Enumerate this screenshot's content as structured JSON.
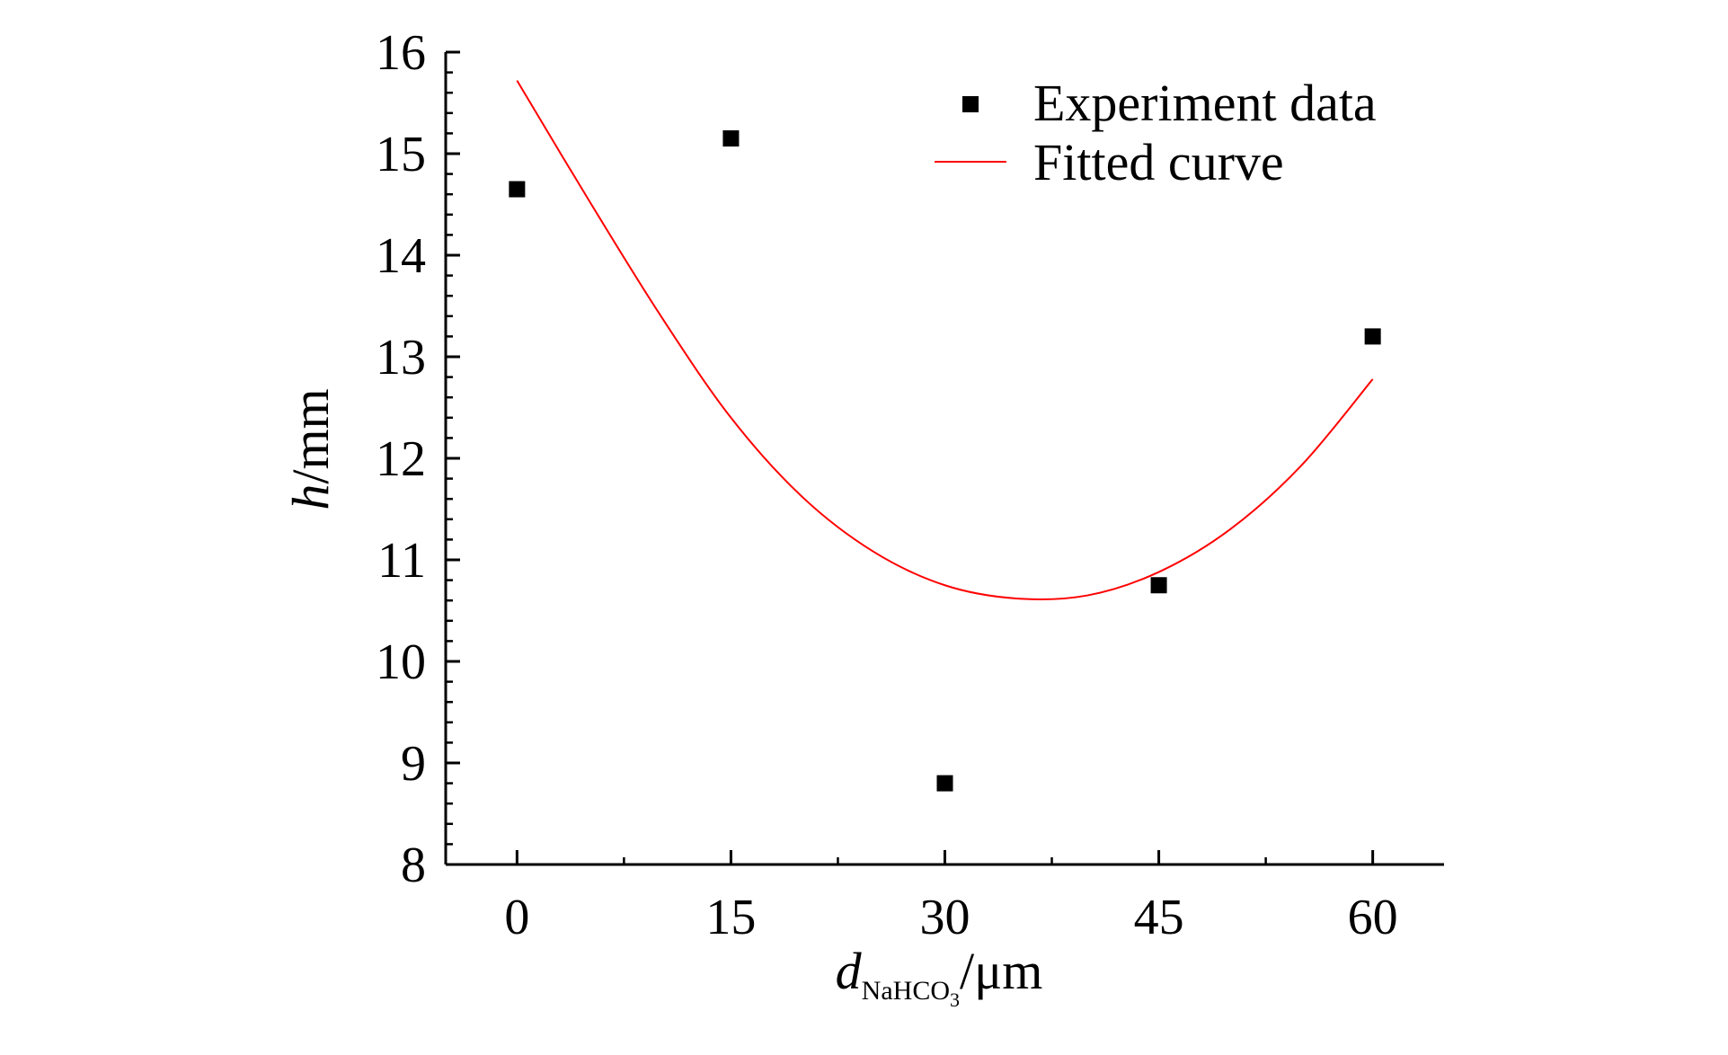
{
  "colors": {
    "background": "#ffffff",
    "axis": "#000000",
    "marker": "#000000",
    "fit_line": "#ff0000"
  },
  "chart_data": {
    "type": "scatter",
    "xlabel": {
      "main": "d",
      "subscript": "NaHCO",
      "subsubscript": "3",
      "unit": "/μm"
    },
    "ylabel": {
      "main": "h",
      "unit": "/mm"
    },
    "xlim": [
      -5,
      65
    ],
    "ylim": [
      8,
      16
    ],
    "x_ticks": [
      0,
      15,
      30,
      45,
      60
    ],
    "x_tick_labels": [
      "0",
      "15",
      "30",
      "45",
      "60"
    ],
    "y_ticks": [
      8,
      9,
      10,
      11,
      12,
      13,
      14,
      15,
      16
    ],
    "y_tick_labels": [
      "8",
      "9",
      "10",
      "11",
      "12",
      "13",
      "14",
      "15",
      "16"
    ],
    "grid": false,
    "legend_position": "top-right",
    "series": [
      {
        "name": "Experiment data",
        "kind": "scatter",
        "marker": "square",
        "color": "#000000",
        "points": [
          {
            "x": 0,
            "y": 14.65
          },
          {
            "x": 15,
            "y": 15.15
          },
          {
            "x": 30,
            "y": 8.8
          },
          {
            "x": 45,
            "y": 10.75
          },
          {
            "x": 60,
            "y": 13.2
          }
        ]
      },
      {
        "name": "Fitted curve",
        "kind": "line",
        "color": "#ff0000",
        "points": [
          {
            "x": 0,
            "y": 15.72
          },
          {
            "x": 5,
            "y": 14.55
          },
          {
            "x": 10,
            "y": 13.42
          },
          {
            "x": 15,
            "y": 12.4
          },
          {
            "x": 20,
            "y": 11.62
          },
          {
            "x": 25,
            "y": 11.08
          },
          {
            "x": 30,
            "y": 10.75
          },
          {
            "x": 35,
            "y": 10.62
          },
          {
            "x": 40,
            "y": 10.65
          },
          {
            "x": 45,
            "y": 10.88
          },
          {
            "x": 50,
            "y": 11.3
          },
          {
            "x": 55,
            "y": 11.93
          },
          {
            "x": 60,
            "y": 12.78
          }
        ]
      }
    ]
  }
}
